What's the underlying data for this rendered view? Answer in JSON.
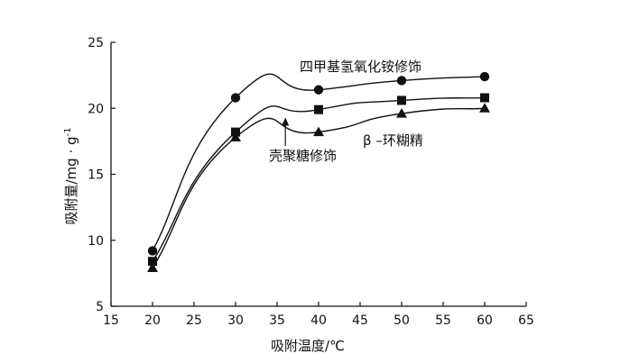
{
  "chart_data": {
    "type": "line",
    "xlabel": "吸附温度/℃",
    "ylabel": "吸附量/mg · g",
    "ylabel_superscript": "-1",
    "xlim": [
      15,
      65
    ],
    "ylim": [
      5,
      25
    ],
    "xticks": [
      15,
      20,
      25,
      30,
      35,
      40,
      45,
      50,
      55,
      60,
      65
    ],
    "yticks": [
      5,
      10,
      15,
      20,
      25
    ],
    "grid": false,
    "legend": "none",
    "x": [
      20,
      30,
      40,
      50,
      60
    ],
    "series": [
      {
        "name": "四甲基氢氧化铵修饰",
        "marker": "circle",
        "values": [
          9.2,
          20.8,
          21.4,
          22.1,
          22.4
        ]
      },
      {
        "name": "壳聚糖修饰",
        "marker": "square",
        "values": [
          8.4,
          18.2,
          19.9,
          20.6,
          20.8
        ]
      },
      {
        "name": "β –环糊精",
        "marker": "triangle",
        "values": [
          7.9,
          17.8,
          18.2,
          19.6,
          20.0
        ]
      }
    ],
    "annotations": [
      {
        "text": "四甲基氢氧化铵修饰",
        "series": 0
      },
      {
        "text": "β –环糊精",
        "series": 2
      },
      {
        "text": "壳聚糖修饰",
        "series": 1,
        "arrow_to": [
          36,
          19.3
        ]
      }
    ]
  }
}
